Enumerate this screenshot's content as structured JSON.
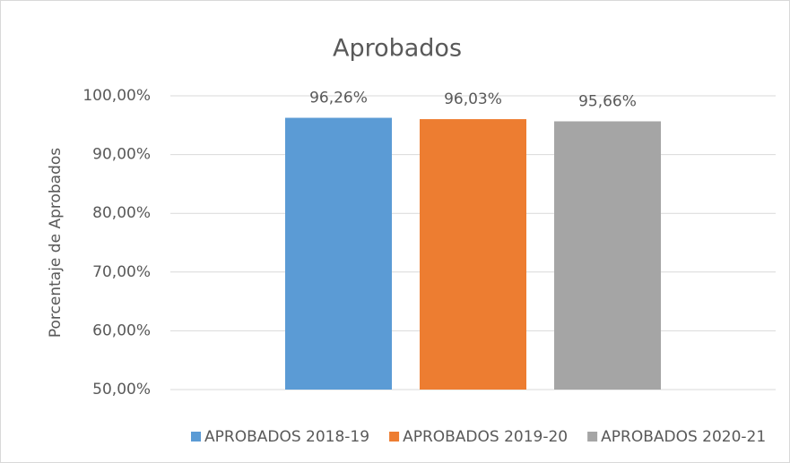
{
  "chart_data": {
    "type": "bar",
    "title": "Aprobados",
    "y_label": "Porcentaje de Aprobados",
    "categories": [
      null
    ],
    "series": [
      {
        "name": "APROBADOS 2018-19",
        "color": "#5b9bd5",
        "values": [
          96.26
        ],
        "value_labels": [
          "96,26%"
        ]
      },
      {
        "name": "APROBADOS 2019-20",
        "color": "#ed7d31",
        "values": [
          96.03
        ],
        "value_labels": [
          "96,03%"
        ]
      },
      {
        "name": "APROBADOS 2020-21",
        "color": "#a5a5a5",
        "values": [
          95.66
        ],
        "value_labels": [
          "95,66%"
        ]
      }
    ],
    "ylim": [
      50,
      100
    ],
    "yticks": [
      {
        "value": 50,
        "label": "50,00%"
      },
      {
        "value": 60,
        "label": "60,00%"
      },
      {
        "value": 70,
        "label": "70,00%"
      },
      {
        "value": 80,
        "label": "80,00%"
      },
      {
        "value": 90,
        "label": "90,00%"
      },
      {
        "value": 100,
        "label": "100,00%"
      }
    ],
    "grid": true,
    "legend": "bottom"
  }
}
